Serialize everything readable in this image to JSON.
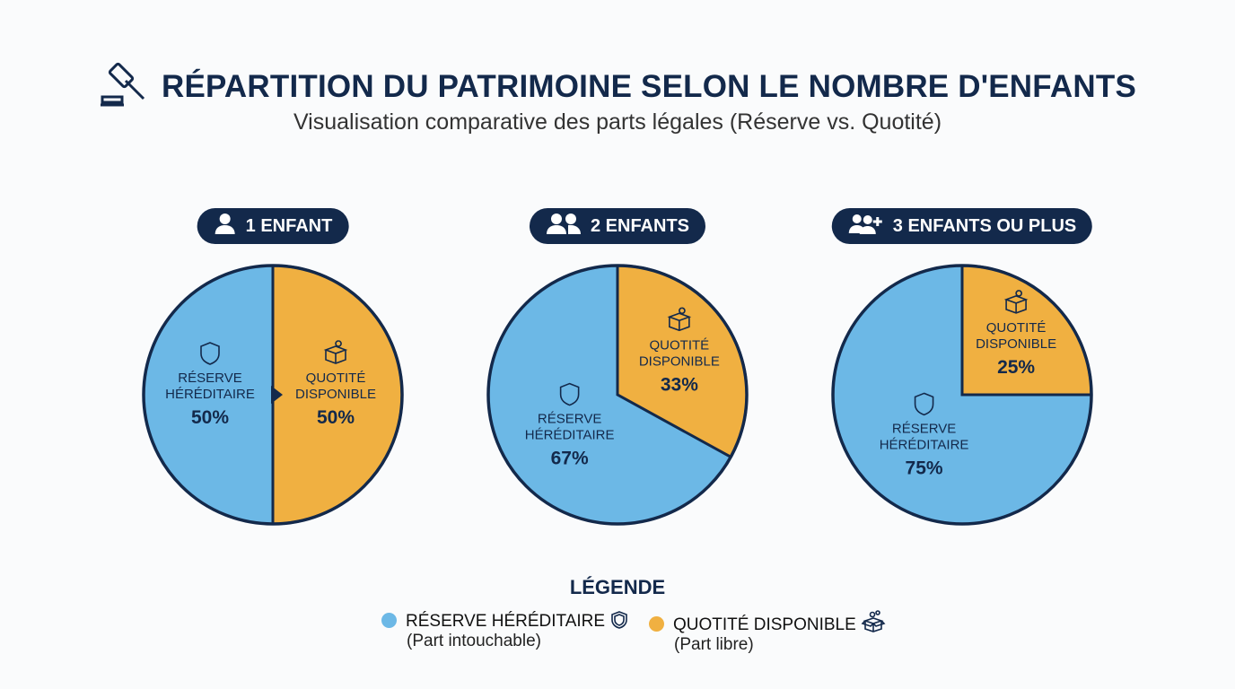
{
  "title": "RÉPARTITION DU PATRIMOINE SELON LE NOMBRE D'ENFANTS",
  "subtitle": "Visualisation comparative des parts légales (Réserve vs. Quotité)",
  "colors": {
    "reserve": "#6cb8e6",
    "quotite": "#f0b041",
    "navy": "#13294b"
  },
  "chart_data": [
    {
      "type": "pie",
      "title": "1 ENFANT",
      "icon": "user-icon",
      "slices": [
        {
          "label": "RÉSERVE HÉRÉDITAIRE",
          "value": 50,
          "text": "50%"
        },
        {
          "label": "QUOTITÉ DISPONIBLE",
          "value": 50,
          "text": "50%"
        }
      ]
    },
    {
      "type": "pie",
      "title": "2 ENFANTS",
      "icon": "users-icon",
      "slices": [
        {
          "label": "RÉSERVE HÉRÉDITAIRE",
          "value": 67,
          "text": "67%"
        },
        {
          "label": "QUOTITÉ DISPONIBLE",
          "value": 33,
          "text": "33%"
        }
      ]
    },
    {
      "type": "pie",
      "title": "3 ENFANTS OU PLUS",
      "icon": "users-plus-icon",
      "slices": [
        {
          "label": "RÉSERVE HÉRÉDITAIRE",
          "value": 75,
          "text": "75%"
        },
        {
          "label": "QUOTITÉ DISPONIBLE",
          "value": 25,
          "text": "25%"
        }
      ]
    }
  ],
  "legend": {
    "title": "LÉGENDE",
    "items": [
      {
        "label": "RÉSERVE HÉRÉDITAIRE",
        "sub": "(Part intouchable)",
        "icon": "shield-icon"
      },
      {
        "label": "QUOTITÉ DISPONIBLE",
        "sub": "(Part libre)",
        "icon": "gift-box-icon"
      }
    ]
  }
}
